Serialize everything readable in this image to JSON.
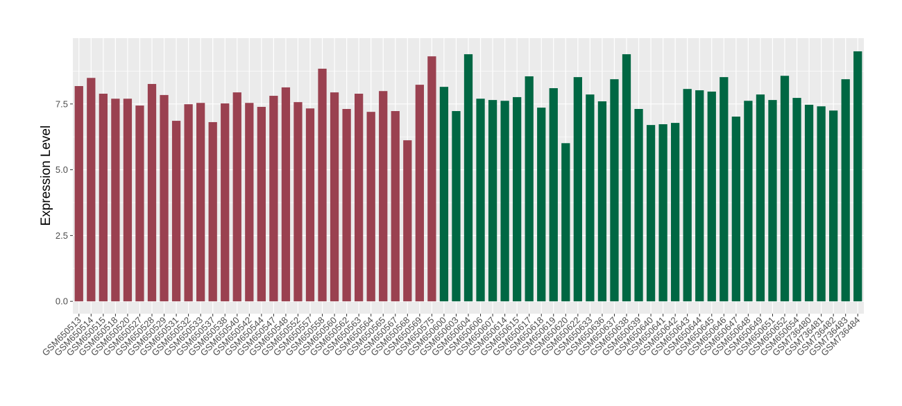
{
  "chart_data": {
    "type": "bar",
    "title": "",
    "xlabel": "",
    "ylabel": "Expression Level",
    "ylim": [
      -0.47,
      10.0
    ],
    "yticks": [
      "0.0",
      "2.5",
      "5.0",
      "7.5"
    ],
    "grid": true,
    "legend": "none",
    "colors": {
      "group1": "#9A4150",
      "group2": "#006743",
      "panel": "#EBEBEB",
      "grid": "#FFFFFF"
    },
    "categories": [
      "GSM650513",
      "GSM650514",
      "GSM650515",
      "GSM650518",
      "GSM650520",
      "GSM650527",
      "GSM650528",
      "GSM650529",
      "GSM650531",
      "GSM650532",
      "GSM650533",
      "GSM650537",
      "GSM650538",
      "GSM650540",
      "GSM650542",
      "GSM650544",
      "GSM650547",
      "GSM650548",
      "GSM650552",
      "GSM650557",
      "GSM650558",
      "GSM650560",
      "GSM650562",
      "GSM650563",
      "GSM650564",
      "GSM650565",
      "GSM650567",
      "GSM650568",
      "GSM650569",
      "GSM650575",
      "GSM650600",
      "GSM650603",
      "GSM650604",
      "GSM650606",
      "GSM650607",
      "GSM650614",
      "GSM650615",
      "GSM650617",
      "GSM650618",
      "GSM650619",
      "GSM650620",
      "GSM650622",
      "GSM650633",
      "GSM650636",
      "GSM650637",
      "GSM650638",
      "GSM650639",
      "GSM650640",
      "GSM650641",
      "GSM650642",
      "GSM650643",
      "GSM650644",
      "GSM650645",
      "GSM650646",
      "GSM650647",
      "GSM650648",
      "GSM650649",
      "GSM650651",
      "GSM650652",
      "GSM650654",
      "GSM736480",
      "GSM736481",
      "GSM736482",
      "GSM736483",
      "GSM736484"
    ],
    "values": [
      8.18,
      8.49,
      7.89,
      7.7,
      7.7,
      7.44,
      8.26,
      7.84,
      6.86,
      7.49,
      7.54,
      6.81,
      7.52,
      7.94,
      7.54,
      7.39,
      7.81,
      8.13,
      7.57,
      7.33,
      8.84,
      7.94,
      7.31,
      7.89,
      7.2,
      7.99,
      7.23,
      6.12,
      8.23,
      9.31,
      8.15,
      7.23,
      9.39,
      7.7,
      7.65,
      7.62,
      7.76,
      8.55,
      7.36,
      8.1,
      6.01,
      8.52,
      7.86,
      7.6,
      8.44,
      9.39,
      7.31,
      6.7,
      6.73,
      6.78,
      8.07,
      8.02,
      7.97,
      8.52,
      7.02,
      7.62,
      7.86,
      7.65,
      8.57,
      7.73,
      7.47,
      7.41,
      7.25,
      8.44,
      9.5
    ],
    "groups": [
      1,
      1,
      1,
      1,
      1,
      1,
      1,
      1,
      1,
      1,
      1,
      1,
      1,
      1,
      1,
      1,
      1,
      1,
      1,
      1,
      1,
      1,
      1,
      1,
      1,
      1,
      1,
      1,
      1,
      1,
      2,
      2,
      2,
      2,
      2,
      2,
      2,
      2,
      2,
      2,
      2,
      2,
      2,
      2,
      2,
      2,
      2,
      2,
      2,
      2,
      2,
      2,
      2,
      2,
      2,
      2,
      2,
      2,
      2,
      2,
      2,
      2,
      2,
      2,
      2
    ]
  }
}
